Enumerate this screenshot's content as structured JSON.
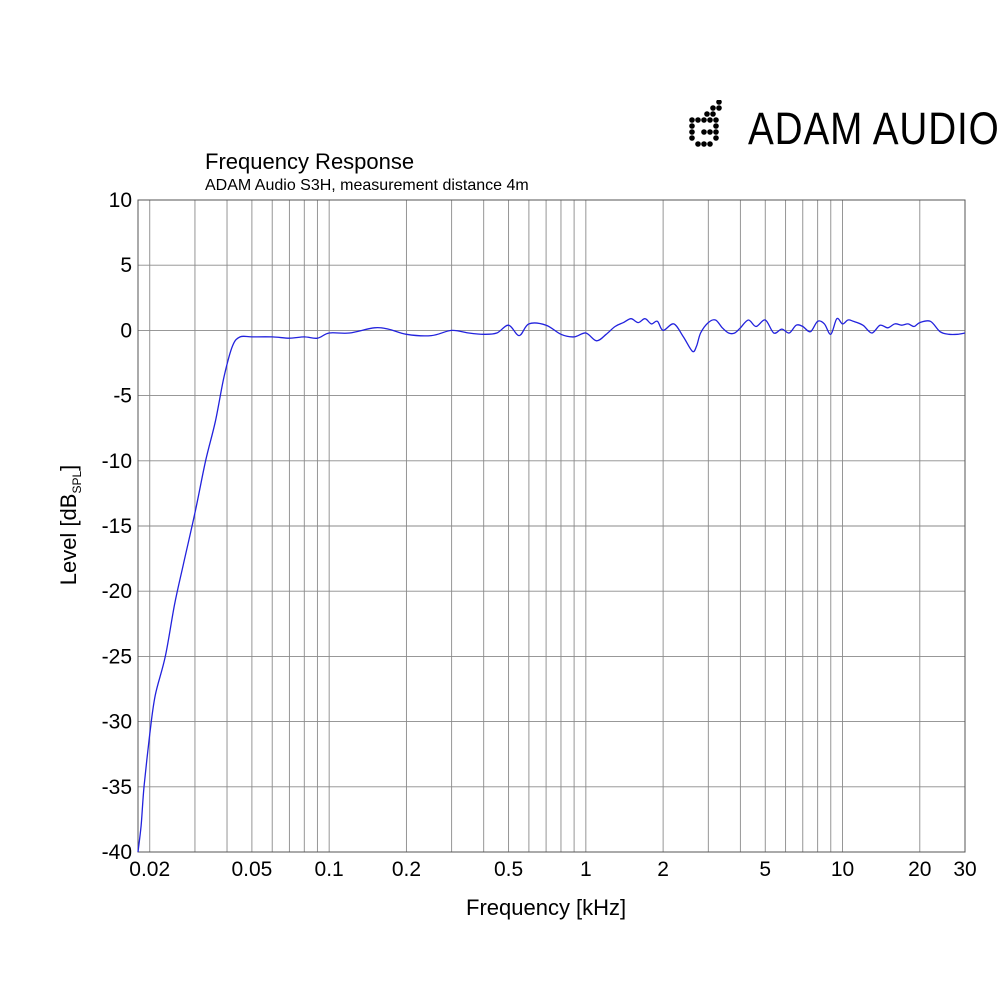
{
  "brand": {
    "name": "ADAM AUDIO",
    "logo_icon": "adam-dots-logo"
  },
  "chart_data": {
    "type": "line",
    "title": "Frequency Response",
    "subtitle": "ADAM Audio S3H, measurement distance 4m",
    "xlabel": "Frequency [kHz]",
    "ylabel": {
      "main": "Level [dB",
      "sub": "SPL",
      "end": "]"
    },
    "xscale": "log",
    "xlim": [
      0.018,
      30
    ],
    "ylim": [
      -40,
      10
    ],
    "yticks": [
      10,
      5,
      0,
      -5,
      -10,
      -15,
      -20,
      -25,
      -30,
      -35,
      -40
    ],
    "ytick_labels": [
      "10",
      "5",
      "0",
      "-5",
      "-10",
      "-15",
      "-20",
      "-25",
      "-30",
      "-35",
      "-40"
    ],
    "xticks": [
      0.02,
      0.05,
      0.1,
      0.2,
      0.5,
      1,
      2,
      5,
      10,
      20,
      30
    ],
    "xtick_labels": [
      "0.02",
      "0.05",
      "0.1",
      "0.2",
      "0.5",
      "1",
      "2",
      "5",
      "10",
      "20",
      "30"
    ],
    "grid": true,
    "line_color": "#2222dd",
    "series": [
      {
        "x": [
          0.018,
          0.0185,
          0.019,
          0.02,
          0.021,
          0.023,
          0.025,
          0.027,
          0.03,
          0.033,
          0.036,
          0.039,
          0.042,
          0.045,
          0.05,
          0.06,
          0.07,
          0.08,
          0.09,
          0.1,
          0.12,
          0.15,
          0.17,
          0.2,
          0.25,
          0.3,
          0.35,
          0.4,
          0.45,
          0.5,
          0.55,
          0.6,
          0.7,
          0.8,
          0.9,
          1.0,
          1.1,
          1.2,
          1.3,
          1.4,
          1.5,
          1.6,
          1.7,
          1.8,
          1.9,
          2.0,
          2.2,
          2.4,
          2.6,
          2.7,
          2.8,
          3.0,
          3.2,
          3.4,
          3.6,
          3.8,
          4.0,
          4.3,
          4.6,
          5.0,
          5.4,
          5.8,
          6.2,
          6.6,
          7.0,
          7.5,
          8.0,
          8.5,
          9.0,
          9.5,
          10.0,
          10.5,
          11.0,
          12.0,
          13.0,
          14.0,
          15.0,
          16.0,
          17.0,
          18.0,
          19.0,
          20.0,
          22.0,
          24.0,
          26.0,
          28.0,
          30.0
        ],
        "y": [
          -40,
          -38,
          -35,
          -31,
          -28,
          -25,
          -21,
          -18,
          -14,
          -10,
          -7,
          -3.5,
          -1.2,
          -0.5,
          -0.5,
          -0.5,
          -0.6,
          -0.5,
          -0.6,
          -0.2,
          -0.2,
          0.2,
          0.1,
          -0.3,
          -0.4,
          0.0,
          -0.2,
          -0.3,
          -0.2,
          0.4,
          -0.4,
          0.5,
          0.4,
          -0.3,
          -0.5,
          -0.2,
          -0.8,
          -0.3,
          0.3,
          0.6,
          0.9,
          0.6,
          0.9,
          0.5,
          0.7,
          0.0,
          0.5,
          -0.5,
          -1.6,
          -1.2,
          -0.2,
          0.6,
          0.8,
          0.2,
          -0.2,
          -0.2,
          0.2,
          0.8,
          0.3,
          0.8,
          -0.2,
          0.1,
          -0.2,
          0.4,
          0.3,
          -0.1,
          0.7,
          0.5,
          -0.3,
          0.9,
          0.5,
          0.8,
          0.7,
          0.4,
          -0.2,
          0.4,
          0.2,
          0.5,
          0.4,
          0.5,
          0.3,
          0.6,
          0.7,
          -0.1,
          -0.3,
          -0.3,
          -0.2
        ]
      }
    ]
  }
}
